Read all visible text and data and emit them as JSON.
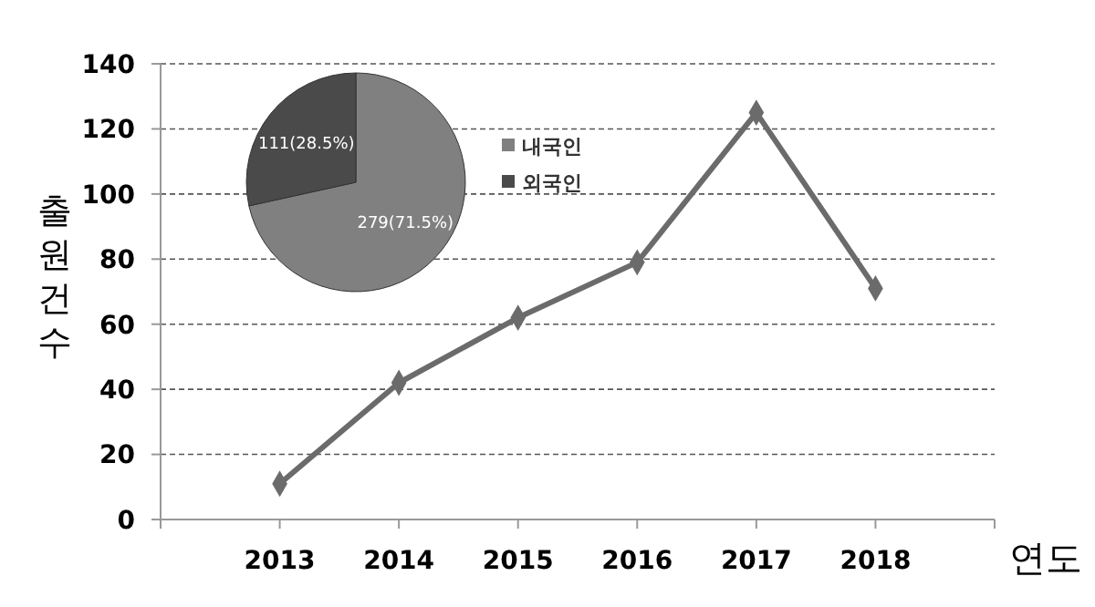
{
  "chart_data": [
    {
      "type": "line",
      "ylabel": "출원건수",
      "xlabel": "연도",
      "categories": [
        null,
        "2013",
        "2014",
        "2015",
        "2016",
        "2017",
        "2018"
      ],
      "series": [
        {
          "color": "#6b6b6b",
          "values": [
            null,
            11,
            42,
            62,
            79,
            125,
            71
          ]
        }
      ],
      "ylim": [
        0,
        140
      ],
      "yticks": [
        0,
        20,
        40,
        60,
        80,
        100,
        120,
        140
      ],
      "grid": "y",
      "marker": "diamond"
    },
    {
      "type": "pie",
      "categories": [
        "내국인",
        "외국인"
      ],
      "values": [
        279,
        111
      ],
      "colors": [
        "#808080",
        "#4a4a4a"
      ],
      "value_labels": [
        "279(71.5%)",
        "111(28.5%)"
      ],
      "legend": "right"
    }
  ]
}
